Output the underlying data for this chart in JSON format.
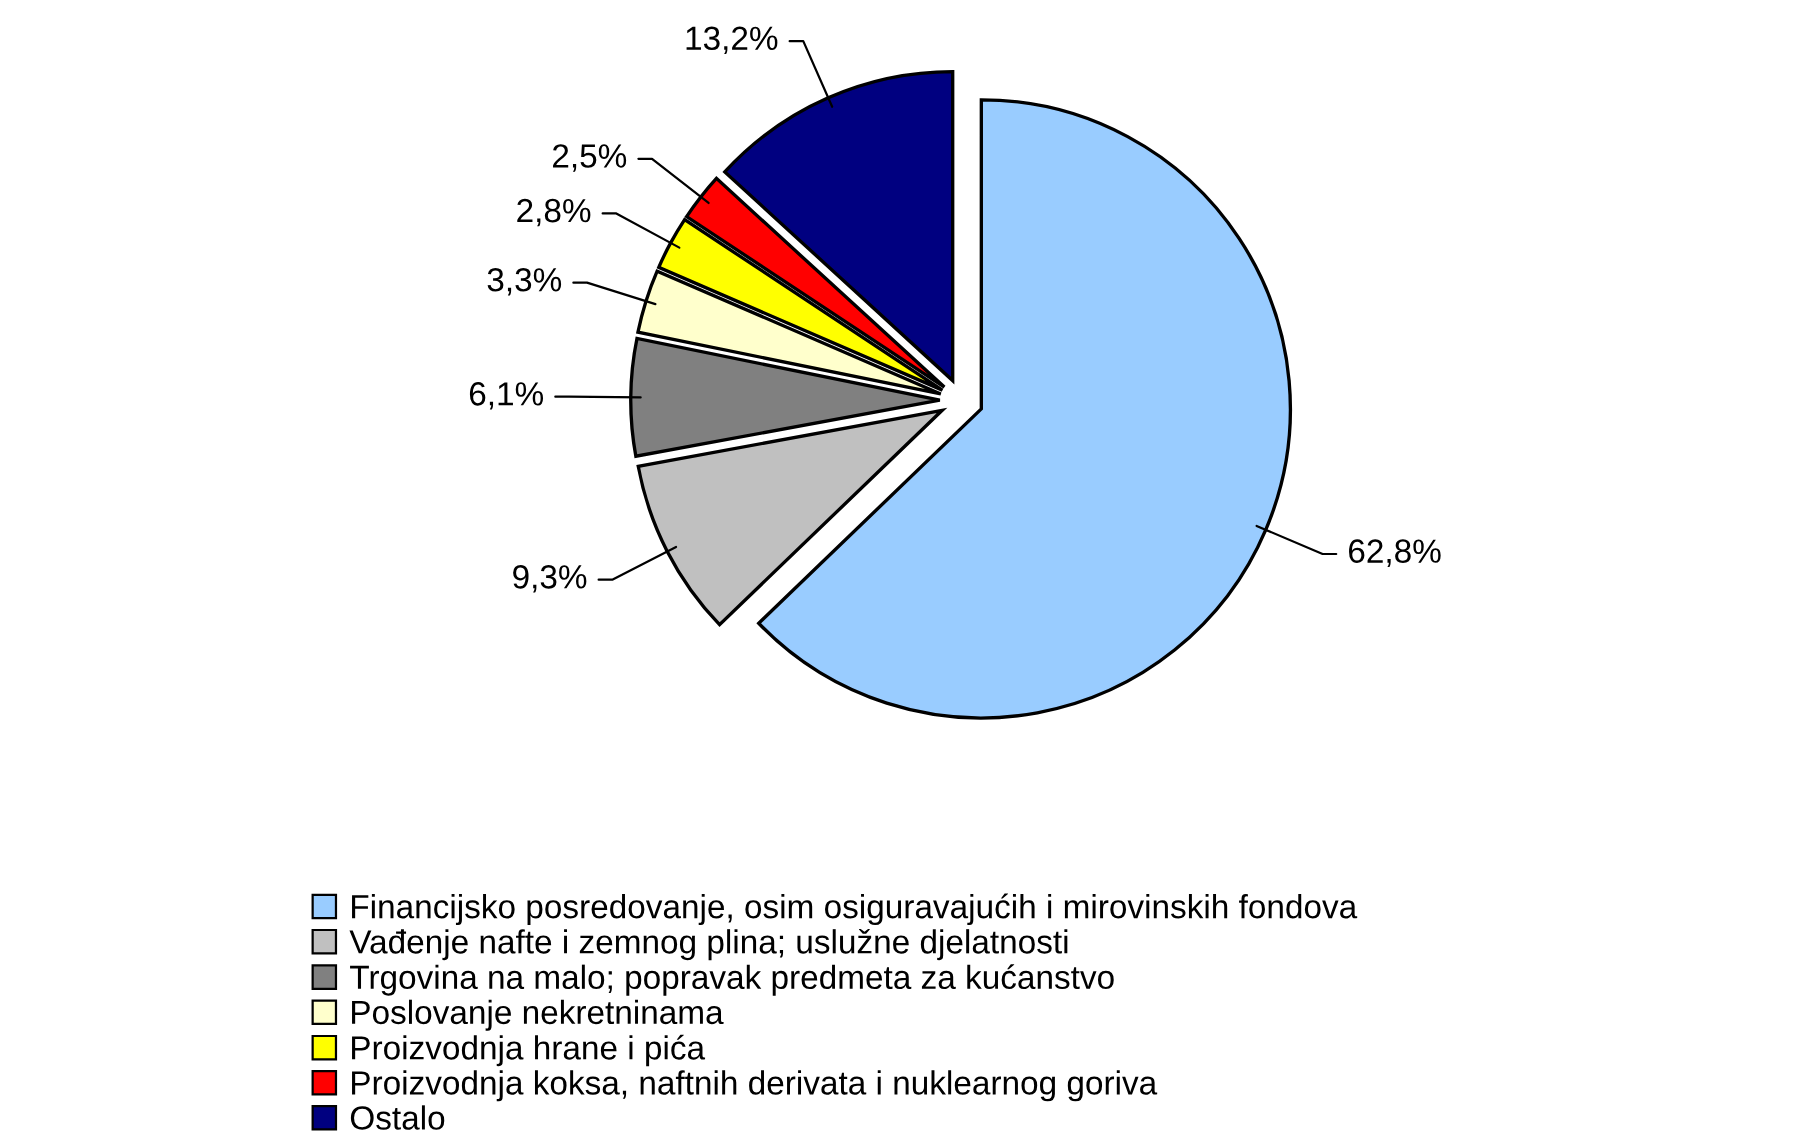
{
  "chart_data": {
    "type": "pie",
    "categories": [
      "Financijsko posredovanje, osim osiguravajućih i mirovinskih fondova",
      "Vađenje nafte i zemnog plina; uslužne djelatnosti",
      "Trgovina na malo; popravak predmeta za kućanstvo",
      "Poslovanje nekretninama",
      "Proizvodnja hrane i pića",
      "Proizvodnja koksa, naftnih derivata i nuklearnog goriva",
      "Ostalo"
    ],
    "values": [
      62.8,
      9.3,
      6.1,
      3.3,
      2.8,
      2.5,
      13.2
    ],
    "value_labels": [
      "62,8%",
      "9,3%",
      "6,1%",
      "3,3%",
      "2,8%",
      "2,5%",
      "13,2%"
    ],
    "colors": [
      "#99ccff",
      "#c0c0c0",
      "#808080",
      "#ffffcc",
      "#ffff00",
      "#ff0000",
      "#000080"
    ],
    "legend": "bottom"
  }
}
